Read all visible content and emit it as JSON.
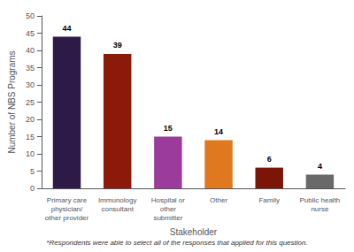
{
  "chart_data": {
    "type": "bar",
    "categories": [
      "Primary care\nphysician/\nother provider",
      "Immunology\nconsultant",
      "Hospital or\nother\nsubmitter",
      "Other",
      "Family",
      "Public health\nnurse"
    ],
    "values": [
      44,
      39,
      15,
      14,
      6,
      4
    ],
    "colors": [
      "#2e1a47",
      "#8b1a0a",
      "#9b3b9b",
      "#e07820",
      "#7a1508",
      "#696969"
    ],
    "xlabel": "Stakeholder",
    "ylabel": "Number of NBS Programs",
    "footnote": "*Respondents were able to select all of the responses that applied for this question.",
    "ylim": [
      0,
      50
    ],
    "yticks": [
      0,
      5,
      10,
      15,
      20,
      25,
      30,
      35,
      40,
      45,
      50
    ],
    "data_labels": true,
    "grid": false
  }
}
